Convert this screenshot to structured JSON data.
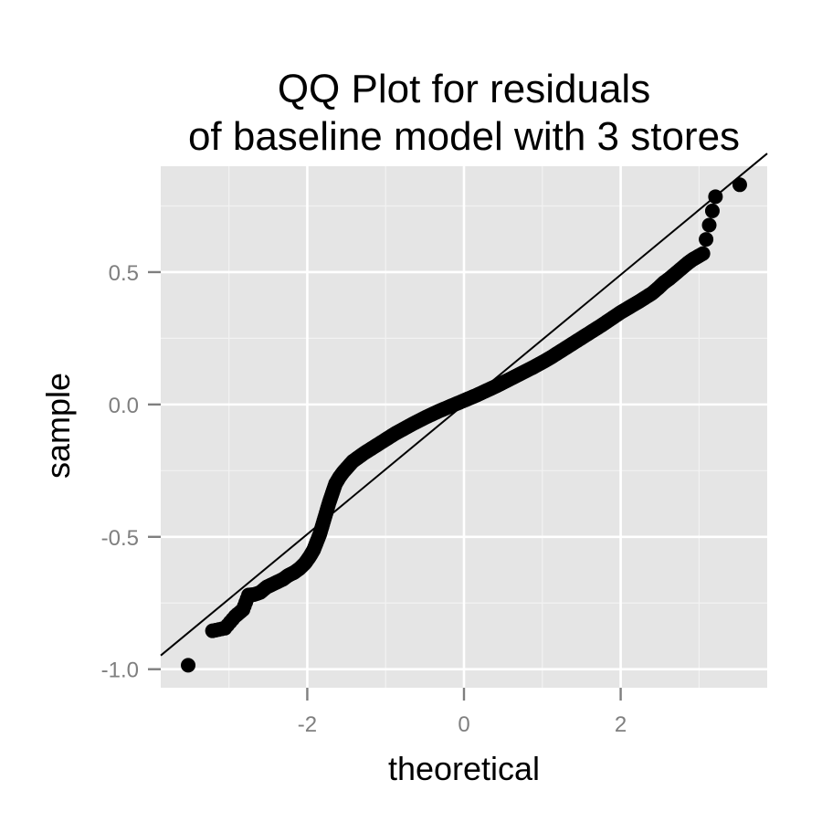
{
  "colors": {
    "panel_background": "#e5e5e5",
    "grid_major": "#ffffff",
    "grid_minor": "#f2f2f2",
    "points": "#000000",
    "reference_line": "#000000",
    "tick_text": "#7f7f7f",
    "tick_marks": "#7f7f7f"
  },
  "chart_data": {
    "type": "scatter",
    "title": [
      "QQ Plot for residuals",
      "of baseline model with 3 stores"
    ],
    "xlabel": "theoretical",
    "ylabel": "sample",
    "xlim": [
      -3.87,
      3.87
    ],
    "ylim": [
      -1.07,
      0.9
    ],
    "x_ticks": [
      -2,
      0,
      2
    ],
    "x_tick_labels": [
      "-2",
      "0",
      "2"
    ],
    "y_ticks": [
      -1.0,
      -0.5,
      0.0,
      0.5
    ],
    "y_tick_labels": [
      "-1.0",
      "-0.5",
      "0.0",
      "0.5"
    ],
    "grid": true,
    "legend": "none",
    "reference_line": {
      "slope": 0.245,
      "intercept": 0.0
    },
    "series": [
      {
        "points": [
          [
            -3.52,
            -0.985
          ],
          [
            -3.21,
            -0.855
          ],
          [
            -3.05,
            -0.845
          ],
          [
            -2.92,
            -0.8
          ],
          [
            -2.82,
            -0.775
          ],
          [
            -2.75,
            -0.72
          ],
          [
            -2.68,
            -0.718
          ],
          [
            -2.6,
            -0.71
          ],
          [
            -2.52,
            -0.69
          ],
          [
            -2.45,
            -0.68
          ],
          [
            -2.38,
            -0.67
          ],
          [
            -2.31,
            -0.66
          ],
          [
            -2.24,
            -0.645
          ],
          [
            -2.17,
            -0.635
          ],
          [
            -2.1,
            -0.62
          ],
          [
            -2.03,
            -0.6
          ],
          [
            -1.97,
            -0.575
          ],
          [
            -1.92,
            -0.55
          ],
          [
            -1.88,
            -0.52
          ],
          [
            -1.84,
            -0.49
          ],
          [
            -1.8,
            -0.45
          ],
          [
            -1.76,
            -0.41
          ],
          [
            -1.72,
            -0.37
          ],
          [
            -1.68,
            -0.335
          ],
          [
            -1.64,
            -0.3
          ],
          [
            -1.59,
            -0.275
          ],
          [
            -1.54,
            -0.255
          ],
          [
            -1.48,
            -0.235
          ],
          [
            -1.42,
            -0.215
          ],
          [
            -1.35,
            -0.2
          ],
          [
            -1.28,
            -0.185
          ],
          [
            -1.2,
            -0.17
          ],
          [
            -1.12,
            -0.155
          ],
          [
            -1.04,
            -0.14
          ],
          [
            -0.96,
            -0.125
          ],
          [
            -0.88,
            -0.11
          ],
          [
            -0.8,
            -0.097
          ],
          [
            -0.72,
            -0.084
          ],
          [
            -0.64,
            -0.071
          ],
          [
            -0.56,
            -0.059
          ],
          [
            -0.48,
            -0.047
          ],
          [
            -0.4,
            -0.036
          ],
          [
            -0.32,
            -0.025
          ],
          [
            -0.24,
            -0.015
          ],
          [
            -0.16,
            -0.005
          ],
          [
            -0.08,
            0.005
          ],
          [
            0.0,
            0.015
          ],
          [
            0.08,
            0.025
          ],
          [
            0.16,
            0.035
          ],
          [
            0.24,
            0.046
          ],
          [
            0.32,
            0.057
          ],
          [
            0.4,
            0.068
          ],
          [
            0.48,
            0.08
          ],
          [
            0.56,
            0.092
          ],
          [
            0.64,
            0.104
          ],
          [
            0.72,
            0.116
          ],
          [
            0.8,
            0.128
          ],
          [
            0.88,
            0.14
          ],
          [
            0.96,
            0.153
          ],
          [
            1.04,
            0.166
          ],
          [
            1.12,
            0.18
          ],
          [
            1.2,
            0.195
          ],
          [
            1.28,
            0.21
          ],
          [
            1.36,
            0.225
          ],
          [
            1.44,
            0.24
          ],
          [
            1.52,
            0.255
          ],
          [
            1.6,
            0.27
          ],
          [
            1.68,
            0.285
          ],
          [
            1.76,
            0.3
          ],
          [
            1.84,
            0.316
          ],
          [
            1.92,
            0.332
          ],
          [
            2.0,
            0.348
          ],
          [
            2.08,
            0.362
          ],
          [
            2.16,
            0.376
          ],
          [
            2.24,
            0.39
          ],
          [
            2.32,
            0.405
          ],
          [
            2.4,
            0.42
          ],
          [
            2.48,
            0.44
          ],
          [
            2.55,
            0.46
          ],
          [
            2.62,
            0.475
          ],
          [
            2.68,
            0.49
          ],
          [
            2.74,
            0.505
          ],
          [
            2.8,
            0.52
          ],
          [
            2.86,
            0.535
          ],
          [
            2.92,
            0.548
          ],
          [
            2.98,
            0.558
          ],
          [
            3.05,
            0.57
          ],
          [
            3.21,
            0.785
          ],
          [
            3.52,
            0.83
          ]
        ]
      }
    ]
  }
}
